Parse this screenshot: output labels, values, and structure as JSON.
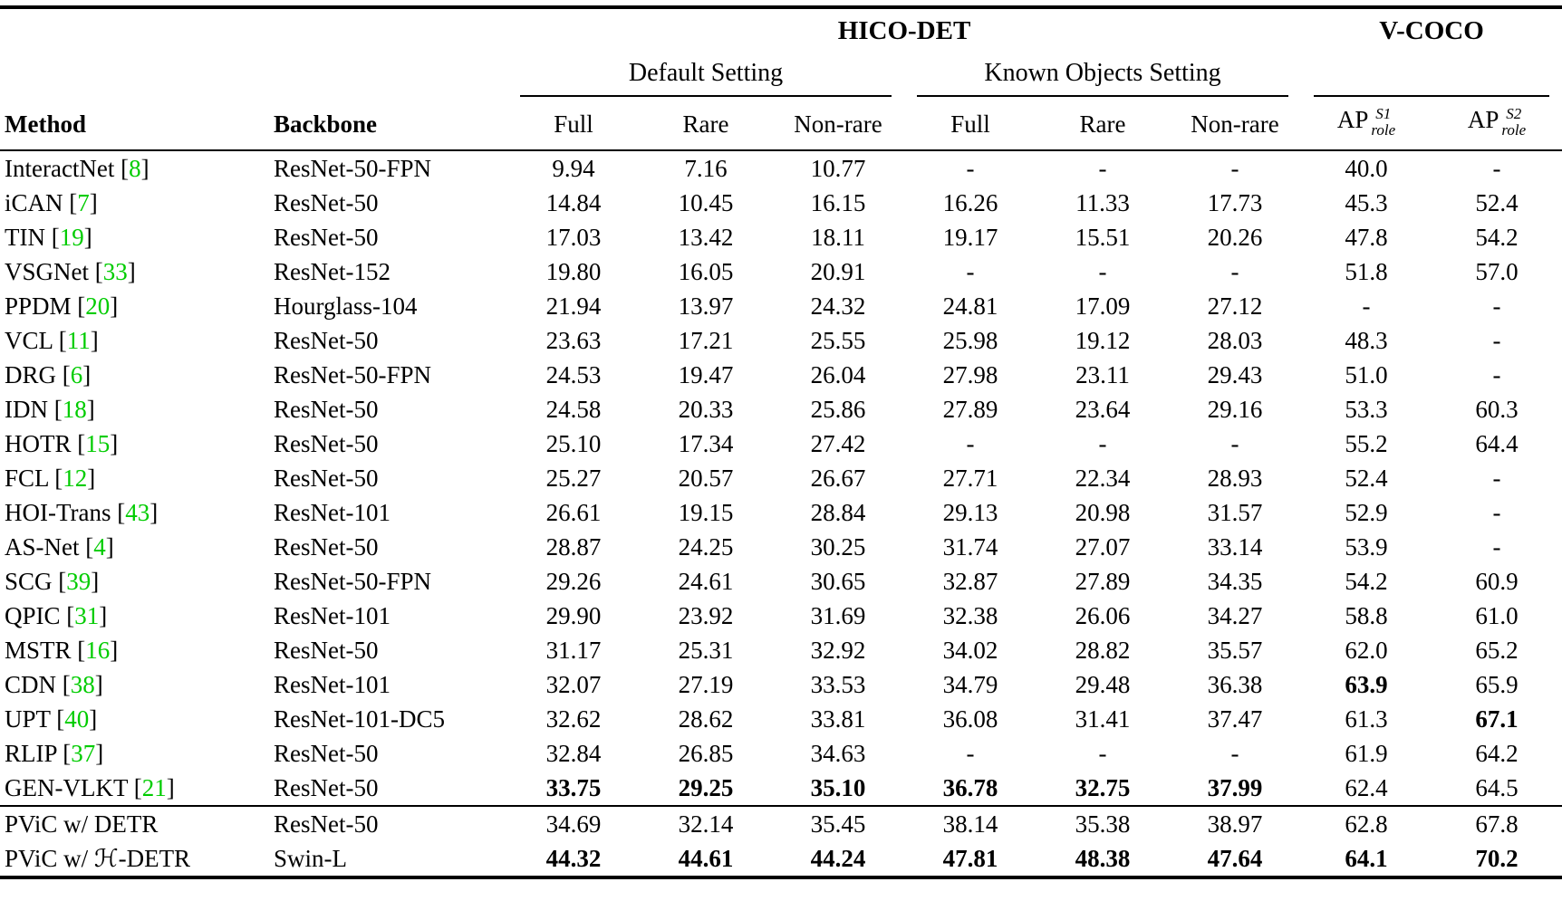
{
  "accent_colors": {
    "citation_green": "#00CC00"
  },
  "table": {
    "groups": [
      {
        "label": "HICO-DET"
      },
      {
        "label": "V-COCO"
      }
    ],
    "subgroups": [
      {
        "label": "Default Setting"
      },
      {
        "label": "Known Objects Setting"
      }
    ],
    "columns": {
      "method": "Method",
      "backbone": "Backbone",
      "metrics": [
        "Full",
        "Rare",
        "Non-rare",
        "Full",
        "Rare",
        "Non-rare"
      ]
    },
    "ap_columns": [
      {
        "base": "AP",
        "sup": "S1",
        "sub": "role"
      },
      {
        "base": "AP",
        "sup": "S2",
        "sub": "role"
      }
    ],
    "rows": [
      {
        "method": "InteractNet",
        "cite": "8",
        "backbone": "ResNet-50-FPN",
        "values": [
          "9.94",
          "7.16",
          "10.77",
          "-",
          "-",
          "-",
          "40.0",
          "-"
        ],
        "bold": [],
        "section": "prior"
      },
      {
        "method": "iCAN",
        "cite": "7",
        "backbone": "ResNet-50",
        "values": [
          "14.84",
          "10.45",
          "16.15",
          "16.26",
          "11.33",
          "17.73",
          "45.3",
          "52.4"
        ],
        "bold": [],
        "section": "prior"
      },
      {
        "method": "TIN",
        "cite": "19",
        "backbone": "ResNet-50",
        "values": [
          "17.03",
          "13.42",
          "18.11",
          "19.17",
          "15.51",
          "20.26",
          "47.8",
          "54.2"
        ],
        "bold": [],
        "section": "prior"
      },
      {
        "method": "VSGNet",
        "cite": "33",
        "backbone": "ResNet-152",
        "values": [
          "19.80",
          "16.05",
          "20.91",
          "-",
          "-",
          "-",
          "51.8",
          "57.0"
        ],
        "bold": [],
        "section": "prior"
      },
      {
        "method": "PPDM",
        "cite": "20",
        "backbone": "Hourglass-104",
        "values": [
          "21.94",
          "13.97",
          "24.32",
          "24.81",
          "17.09",
          "27.12",
          "-",
          "-"
        ],
        "bold": [],
        "section": "prior"
      },
      {
        "method": "VCL",
        "cite": "11",
        "backbone": "ResNet-50",
        "values": [
          "23.63",
          "17.21",
          "25.55",
          "25.98",
          "19.12",
          "28.03",
          "48.3",
          "-"
        ],
        "bold": [],
        "section": "prior"
      },
      {
        "method": "DRG",
        "cite": "6",
        "backbone": "ResNet-50-FPN",
        "values": [
          "24.53",
          "19.47",
          "26.04",
          "27.98",
          "23.11",
          "29.43",
          "51.0",
          "-"
        ],
        "bold": [],
        "section": "prior"
      },
      {
        "method": "IDN",
        "cite": "18",
        "backbone": "ResNet-50",
        "values": [
          "24.58",
          "20.33",
          "25.86",
          "27.89",
          "23.64",
          "29.16",
          "53.3",
          "60.3"
        ],
        "bold": [],
        "section": "prior"
      },
      {
        "method": "HOTR",
        "cite": "15",
        "backbone": "ResNet-50",
        "values": [
          "25.10",
          "17.34",
          "27.42",
          "-",
          "-",
          "-",
          "55.2",
          "64.4"
        ],
        "bold": [],
        "section": "prior"
      },
      {
        "method": "FCL",
        "cite": "12",
        "backbone": "ResNet-50",
        "values": [
          "25.27",
          "20.57",
          "26.67",
          "27.71",
          "22.34",
          "28.93",
          "52.4",
          "-"
        ],
        "bold": [],
        "section": "prior"
      },
      {
        "method": "HOI-Trans",
        "cite": "43",
        "backbone": "ResNet-101",
        "values": [
          "26.61",
          "19.15",
          "28.84",
          "29.13",
          "20.98",
          "31.57",
          "52.9",
          "-"
        ],
        "bold": [],
        "section": "prior"
      },
      {
        "method": "AS-Net",
        "cite": "4",
        "backbone": "ResNet-50",
        "values": [
          "28.87",
          "24.25",
          "30.25",
          "31.74",
          "27.07",
          "33.14",
          "53.9",
          "-"
        ],
        "bold": [],
        "section": "prior"
      },
      {
        "method": "SCG",
        "cite": "39",
        "backbone": "ResNet-50-FPN",
        "values": [
          "29.26",
          "24.61",
          "30.65",
          "32.87",
          "27.89",
          "34.35",
          "54.2",
          "60.9"
        ],
        "bold": [],
        "section": "prior"
      },
      {
        "method": "QPIC",
        "cite": "31",
        "backbone": "ResNet-101",
        "values": [
          "29.90",
          "23.92",
          "31.69",
          "32.38",
          "26.06",
          "34.27",
          "58.8",
          "61.0"
        ],
        "bold": [],
        "section": "prior"
      },
      {
        "method": "MSTR",
        "cite": "16",
        "backbone": "ResNet-50",
        "values": [
          "31.17",
          "25.31",
          "32.92",
          "34.02",
          "28.82",
          "35.57",
          "62.0",
          "65.2"
        ],
        "bold": [],
        "section": "prior"
      },
      {
        "method": "CDN",
        "cite": "38",
        "backbone": "ResNet-101",
        "values": [
          "32.07",
          "27.19",
          "33.53",
          "34.79",
          "29.48",
          "36.38",
          "63.9",
          "65.9"
        ],
        "bold": [
          6
        ],
        "section": "prior"
      },
      {
        "method": "UPT",
        "cite": "40",
        "backbone": "ResNet-101-DC5",
        "values": [
          "32.62",
          "28.62",
          "33.81",
          "36.08",
          "31.41",
          "37.47",
          "61.3",
          "67.1"
        ],
        "bold": [
          7
        ],
        "section": "prior"
      },
      {
        "method": "RLIP",
        "cite": "37",
        "backbone": "ResNet-50",
        "values": [
          "32.84",
          "26.85",
          "34.63",
          "-",
          "-",
          "-",
          "61.9",
          "64.2"
        ],
        "bold": [],
        "section": "prior"
      },
      {
        "method": "GEN-VLKT",
        "cite": "21",
        "backbone": "ResNet-50",
        "values": [
          "33.75",
          "29.25",
          "35.10",
          "36.78",
          "32.75",
          "37.99",
          "62.4",
          "64.5"
        ],
        "bold": [
          0,
          1,
          2,
          3,
          4,
          5
        ],
        "section": "prior"
      },
      {
        "method": "PViC w/ DETR",
        "cite": null,
        "backbone": "ResNet-50",
        "values": [
          "34.69",
          "32.14",
          "35.45",
          "38.14",
          "35.38",
          "38.97",
          "62.8",
          "67.8"
        ],
        "bold": [],
        "section": "ours"
      },
      {
        "method": "PViC w/ ℋ-DETR",
        "cite": null,
        "backbone": "Swin-L",
        "values": [
          "44.32",
          "44.61",
          "44.24",
          "47.81",
          "48.38",
          "47.64",
          "64.1",
          "70.2"
        ],
        "bold": [
          0,
          1,
          2,
          3,
          4,
          5,
          6,
          7
        ],
        "section": "ours"
      }
    ]
  }
}
